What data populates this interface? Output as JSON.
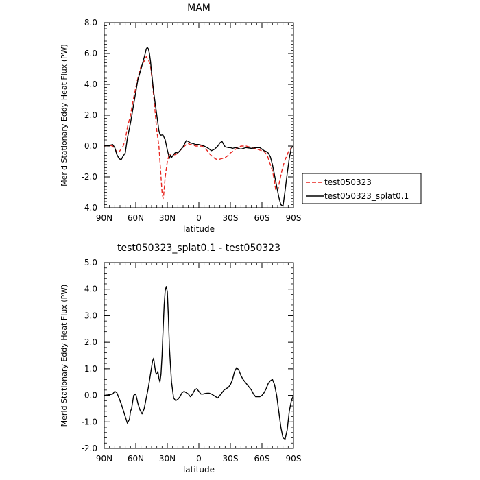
{
  "chart_data": [
    {
      "type": "line",
      "title": "MAM",
      "xlabel": "latitude",
      "ylabel": "Merid Stationary Eddy Heat Flux (PW)",
      "xlim": [
        90,
        -90
      ],
      "ylim": [
        -4.0,
        8.0
      ],
      "xticks": [
        90,
        60,
        30,
        0,
        -30,
        -60,
        -90
      ],
      "xtick_labels": [
        "90N",
        "60N",
        "30N",
        "0",
        "30S",
        "60S",
        "90S"
      ],
      "yticks": [
        -4,
        -2,
        0,
        2,
        4,
        6,
        8
      ],
      "ytick_labels": [
        "-4.0",
        "-2.0",
        "0.0",
        "2.0",
        "4.0",
        "6.0",
        "8.0"
      ],
      "legend_position": "right",
      "series": [
        {
          "name": "test050323",
          "color": "#e8251f",
          "dash": "dashed",
          "x": [
            90,
            85,
            82,
            80,
            77,
            75,
            72,
            70,
            68,
            65,
            63,
            60,
            58,
            55,
            53,
            51,
            50,
            48,
            46,
            44,
            42,
            40,
            38,
            37,
            36,
            35,
            34,
            33.5,
            33,
            32,
            30,
            28,
            26,
            25,
            22,
            20,
            18,
            15,
            12,
            10,
            8,
            5,
            3,
            0,
            -3,
            -5,
            -8,
            -10,
            -15,
            -18,
            -20,
            -25,
            -28,
            -30,
            -35,
            -40,
            -45,
            -50,
            -55,
            -60,
            -62,
            -65,
            -67,
            -70,
            -72,
            -73,
            -75,
            -77,
            -80,
            -82,
            -85,
            -88,
            -90
          ],
          "y": [
            0.0,
            0.05,
            0.0,
            -0.2,
            -0.45,
            -0.3,
            0.0,
            0.4,
            1.2,
            2.0,
            2.8,
            3.8,
            4.4,
            5.2,
            5.4,
            5.6,
            5.8,
            5.6,
            5.2,
            4.0,
            2.5,
            1.0,
            0.0,
            -1.0,
            -2.0,
            -3.0,
            -3.4,
            -3.2,
            -2.8,
            -2.0,
            -1.0,
            -0.5,
            -0.7,
            -0.6,
            -0.55,
            -0.45,
            -0.3,
            -0.1,
            0.1,
            0.15,
            0.1,
            0.05,
            0.0,
            0.0,
            0.0,
            -0.1,
            -0.3,
            -0.5,
            -0.8,
            -0.9,
            -0.85,
            -0.75,
            -0.6,
            -0.45,
            -0.2,
            0.0,
            0.0,
            -0.1,
            -0.2,
            -0.3,
            -0.35,
            -0.6,
            -1.0,
            -1.6,
            -2.3,
            -2.8,
            -2.9,
            -2.2,
            -1.3,
            -0.9,
            -0.4,
            -0.1,
            0.0
          ]
        },
        {
          "name": "test050323_splat0.1",
          "color": "#000000",
          "dash": "solid",
          "x": [
            90,
            85,
            82,
            80,
            78,
            76,
            74,
            72,
            70,
            68,
            65,
            62,
            60,
            58,
            55,
            53,
            51,
            50,
            49,
            48,
            47,
            46,
            45,
            43,
            40,
            38,
            37,
            36,
            35,
            34,
            33,
            32,
            30,
            28,
            27,
            26,
            25,
            24,
            22,
            20,
            18,
            15,
            12,
            10,
            8,
            5,
            3,
            0,
            -3,
            -5,
            -8,
            -10,
            -12,
            -15,
            -18,
            -20,
            -22,
            -25,
            -28,
            -30,
            -32,
            -35,
            -40,
            -45,
            -50,
            -55,
            -58,
            -60,
            -62,
            -64,
            -66,
            -68,
            -70,
            -72,
            -74,
            -76,
            -78,
            -80,
            -82,
            -84,
            -86,
            -88,
            -90
          ],
          "y": [
            0.0,
            0.05,
            0.1,
            -0.1,
            -0.55,
            -0.8,
            -0.9,
            -0.65,
            -0.45,
            0.5,
            1.5,
            2.7,
            3.5,
            4.3,
            5.0,
            5.5,
            6.0,
            6.3,
            6.4,
            6.3,
            6.0,
            5.5,
            4.8,
            3.5,
            2.0,
            1.0,
            0.75,
            0.7,
            0.72,
            0.7,
            0.55,
            0.4,
            -0.25,
            -0.8,
            -0.6,
            -0.75,
            -0.65,
            -0.55,
            -0.4,
            -0.45,
            -0.3,
            -0.05,
            0.35,
            0.3,
            0.2,
            0.15,
            0.1,
            0.1,
            0.05,
            0.0,
            -0.1,
            -0.2,
            -0.3,
            -0.2,
            0.0,
            0.2,
            0.3,
            -0.05,
            -0.1,
            -0.1,
            -0.15,
            -0.1,
            -0.2,
            -0.1,
            -0.15,
            -0.1,
            -0.1,
            -0.2,
            -0.3,
            -0.35,
            -0.45,
            -0.7,
            -1.2,
            -1.9,
            -2.6,
            -3.3,
            -3.8,
            -3.9,
            -2.9,
            -1.8,
            -0.8,
            -0.1,
            0.0
          ]
        }
      ]
    },
    {
      "type": "line",
      "title": "test050323_splat0.1 - test050323",
      "xlabel": "latitude",
      "ylabel": "Merid Stationary Eddy Heat Flux (PW)",
      "xlim": [
        90,
        -90
      ],
      "ylim": [
        -2.0,
        5.0
      ],
      "xticks": [
        90,
        60,
        30,
        0,
        -30,
        -60,
        -90
      ],
      "xtick_labels": [
        "90N",
        "60N",
        "30N",
        "0",
        "30S",
        "60S",
        "90S"
      ],
      "yticks": [
        -2,
        -1,
        0,
        1,
        2,
        3,
        4,
        5
      ],
      "ytick_labels": [
        "-2.0",
        "-1.0",
        "0.0",
        "1.0",
        "2.0",
        "3.0",
        "4.0",
        "5.0"
      ],
      "series": [
        {
          "color": "#000000",
          "dash": "solid",
          "x": [
            90,
            86,
            82,
            80,
            78,
            76,
            74,
            72,
            70,
            68,
            66,
            65,
            64,
            62,
            60,
            58,
            56,
            54,
            52,
            50,
            48,
            47,
            46,
            45,
            44,
            43,
            42,
            41,
            40,
            39,
            38,
            37,
            36,
            35,
            34,
            33,
            32,
            31,
            30,
            29,
            28,
            26,
            24,
            22,
            20,
            18,
            16,
            14,
            12,
            10,
            8,
            6,
            4,
            2,
            0,
            -2,
            -4,
            -6,
            -8,
            -10,
            -12,
            -14,
            -16,
            -18,
            -20,
            -22,
            -24,
            -26,
            -28,
            -30,
            -32,
            -34,
            -36,
            -38,
            -40,
            -42,
            -44,
            -46,
            -48,
            -50,
            -52,
            -54,
            -56,
            -58,
            -60,
            -62,
            -64,
            -66,
            -68,
            -70,
            -72,
            -74,
            -76,
            -78,
            -80,
            -82,
            -84,
            -86,
            -88,
            -90
          ],
          "y": [
            0.0,
            0.02,
            0.05,
            0.15,
            0.1,
            -0.1,
            -0.3,
            -0.55,
            -0.8,
            -1.05,
            -0.9,
            -0.6,
            -0.5,
            0.0,
            0.05,
            -0.3,
            -0.55,
            -0.7,
            -0.5,
            -0.1,
            0.3,
            0.55,
            0.8,
            1.05,
            1.3,
            1.4,
            1.1,
            0.85,
            0.8,
            0.9,
            0.65,
            0.5,
            0.8,
            1.5,
            2.5,
            3.4,
            3.95,
            4.1,
            3.9,
            3.0,
            1.8,
            0.5,
            -0.1,
            -0.2,
            -0.15,
            -0.05,
            0.1,
            0.15,
            0.1,
            0.05,
            -0.05,
            0.05,
            0.2,
            0.25,
            0.15,
            0.05,
            0.05,
            0.07,
            0.08,
            0.08,
            0.05,
            0.0,
            -0.05,
            -0.1,
            0.0,
            0.1,
            0.2,
            0.25,
            0.3,
            0.4,
            0.6,
            0.9,
            1.05,
            0.95,
            0.75,
            0.6,
            0.5,
            0.4,
            0.3,
            0.2,
            0.05,
            -0.05,
            -0.05,
            -0.05,
            0.0,
            0.1,
            0.25,
            0.45,
            0.55,
            0.6,
            0.4,
            0.0,
            -0.6,
            -1.2,
            -1.6,
            -1.65,
            -1.3,
            -0.6,
            -0.2,
            0.0
          ]
        }
      ]
    }
  ]
}
